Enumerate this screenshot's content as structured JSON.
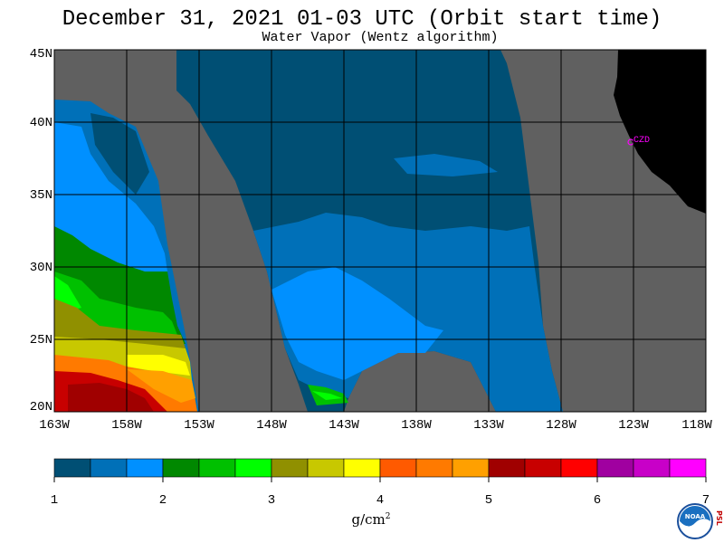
{
  "title": "December 31, 2021  01-03 UTC  (Orbit start time)",
  "subtitle": "Water Vapor (Wentz algorithm)",
  "lat_labels": [
    "45N",
    "40N",
    "35N",
    "30N",
    "25N",
    "20N"
  ],
  "lon_labels": [
    "163W",
    "158W",
    "153W",
    "148W",
    "143W",
    "138W",
    "133W",
    "128W",
    "123W",
    "118W"
  ],
  "colorbar": {
    "tick_labels": [
      "1",
      "2",
      "3",
      "4",
      "5",
      "6",
      "7"
    ],
    "unit": "g/cm",
    "unit_exp": "2",
    "colors": [
      "#004f74",
      "#0070b8",
      "#0090ff",
      "#008800",
      "#00c000",
      "#00ff00",
      "#909000",
      "#c8c800",
      "#ffff00",
      "#ff5a00",
      "#ff7a00",
      "#ffa000",
      "#a00000",
      "#c80000",
      "#ff0000",
      "#a000a0",
      "#c800c8",
      "#ff00ff"
    ]
  },
  "map": {
    "station_label": "CZD",
    "colors": {
      "land": "#000000",
      "no_data": "#606060",
      "grid": "#000000",
      "station": "#ff00ff"
    }
  },
  "logo": {
    "name": "NOAA",
    "side_text": "PSL"
  }
}
